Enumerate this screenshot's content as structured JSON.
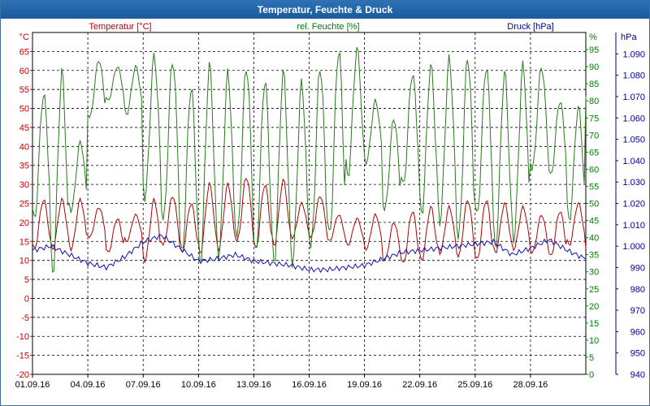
{
  "window": {
    "title": "Temperatur, Feuchte & Druck"
  },
  "chart_data": {
    "type": "line",
    "title": "Temperatur, Feuchte & Druck",
    "x_start_day": 1,
    "x_end_day": 31,
    "xticks": [
      {
        "day": 1,
        "label": "01.09.16"
      },
      {
        "day": 4,
        "label": "04.09.16"
      },
      {
        "day": 7,
        "label": "07.09.16"
      },
      {
        "day": 10,
        "label": "10.09.16"
      },
      {
        "day": 13,
        "label": "13.09.16"
      },
      {
        "day": 16,
        "label": "16.09.16"
      },
      {
        "day": 19,
        "label": "19.09.16"
      },
      {
        "day": 22,
        "label": "22.09.16"
      },
      {
        "day": 25,
        "label": "25.09.16"
      },
      {
        "day": 28,
        "label": "28.09.16"
      }
    ],
    "grid": true,
    "axes": {
      "temperature": {
        "name": "Temperatur [°C]",
        "unit": "°C",
        "color": "#c00000",
        "side": "left",
        "min": -20,
        "max": 70,
        "ticks": [
          "-20",
          "-15",
          "-10",
          "-5",
          "0",
          "5",
          "10",
          "15",
          "20",
          "25",
          "30",
          "35",
          "40",
          "45",
          "50",
          "55",
          "60",
          "65"
        ],
        "tick_values": [
          -20,
          -15,
          -10,
          -5,
          0,
          5,
          10,
          15,
          20,
          25,
          30,
          35,
          40,
          45,
          50,
          55,
          60,
          65
        ]
      },
      "humidity": {
        "name": "rel. Feuchte [%]",
        "unit": "%",
        "color": "#008000",
        "side": "right-inner",
        "min": 0,
        "max": 100,
        "ticks": [
          "0",
          "5",
          "10",
          "15",
          "20",
          "25",
          "30",
          "35",
          "40",
          "45",
          "50",
          "55",
          "60",
          "65",
          "70",
          "75",
          "80",
          "85",
          "90",
          "95"
        ],
        "tick_values": [
          0,
          5,
          10,
          15,
          20,
          25,
          30,
          35,
          40,
          45,
          50,
          55,
          60,
          65,
          70,
          75,
          80,
          85,
          90,
          95
        ]
      },
      "pressure": {
        "name": "Druck [hPa]",
        "unit": "hPa",
        "color": "#000090",
        "side": "right-outer",
        "min": 940,
        "max": 1100,
        "ticks": [
          "940",
          "950",
          "960",
          "970",
          "980",
          "990",
          "1.000",
          "1.010",
          "1.020",
          "1.030",
          "1.040",
          "1.050",
          "1.060",
          "1.070",
          "1.080",
          "1.090"
        ],
        "tick_values": [
          940,
          950,
          960,
          970,
          980,
          990,
          1000,
          1010,
          1020,
          1030,
          1040,
          1050,
          1060,
          1070,
          1080,
          1090
        ]
      }
    },
    "series": [
      {
        "name": "Temperatur",
        "axis": "temperature",
        "color": "#b00000",
        "min_values": [
          13,
          13,
          13,
          16,
          12,
          15,
          10,
          14,
          12,
          12,
          13,
          15,
          13,
          14,
          16,
          16,
          15,
          14,
          13,
          10,
          9,
          10,
          12,
          11,
          10,
          12,
          13,
          12,
          11,
          14,
          12
        ],
        "max_values": [
          26,
          26,
          26,
          24,
          21,
          22,
          26,
          27,
          25,
          30,
          30,
          32,
          30,
          31,
          25,
          27,
          22,
          21,
          22,
          20,
          23,
          24,
          24,
          26,
          26,
          25,
          24,
          22,
          23,
          25,
          22
        ]
      },
      {
        "name": "rel. Feuchte",
        "axis": "humidity",
        "color": "#2a7a1f",
        "min_values": [
          45,
          30,
          48,
          75,
          80,
          76,
          52,
          45,
          35,
          33,
          35,
          40,
          35,
          33,
          33,
          37,
          40,
          58,
          62,
          48,
          55,
          47,
          45,
          40,
          46,
          37,
          40,
          60,
          58,
          45,
          80
        ],
        "max_values": [
          82,
          88,
          68,
          92,
          90,
          90,
          93,
          92,
          84,
          90,
          88,
          90,
          86,
          88,
          85,
          90,
          95,
          95,
          80,
          75,
          88,
          90,
          92,
          93,
          90,
          88,
          90,
          90,
          80,
          78,
          92
        ]
      },
      {
        "name": "Druck",
        "axis": "pressure",
        "color": "#1010b0",
        "values": [
          998,
          1000,
          996,
          992,
          990,
          995,
          1002,
          1005,
          999,
          993,
          994,
          996,
          993,
          992,
          991,
          989,
          989,
          990,
          991,
          994,
          997,
          998,
          999,
          1000,
          1001,
          1002,
          996,
          999,
          1003,
          998,
          994
        ]
      }
    ]
  }
}
